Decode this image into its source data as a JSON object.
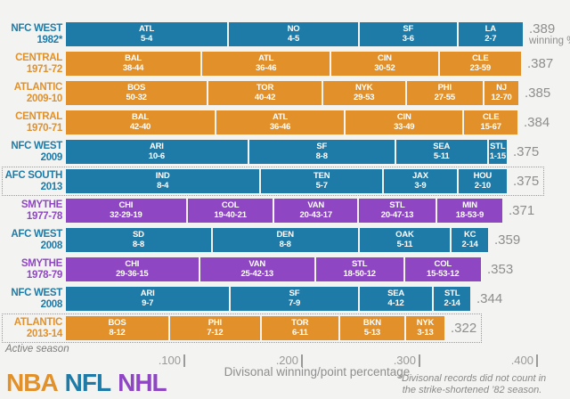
{
  "page": {
    "background": "#f3f3f1"
  },
  "legend": {
    "items": [
      {
        "label": "NBA",
        "color": "#e2912a"
      },
      {
        "label": "NFL",
        "color": "#1e7ba8"
      },
      {
        "label": "NHL",
        "color": "#8f46c3"
      }
    ]
  },
  "active_season_label": "Active season",
  "footnote": {
    "line1": "*Divisonal records did not count in",
    "line2": "the strike-shortened ’82 season."
  },
  "axis": {
    "title": "Divisonal winning/point percentage",
    "ticks": [
      {
        "label": ".100",
        "value": 0.1
      },
      {
        "label": ".200",
        "value": 0.2
      },
      {
        "label": ".300",
        "value": 0.3
      },
      {
        "label": ".400",
        "value": 0.4
      }
    ]
  },
  "chart_data": {
    "type": "bar",
    "orientation": "horizontal",
    "xlabel": "Divisonal winning/point percentage",
    "xlim": [
      0,
      0.4
    ],
    "note": "segment widths proportional to wins (NBA/NFL) or points 2W+T (NHL)",
    "rows": [
      {
        "division": "NFC WEST",
        "season": "1982*",
        "league": "NFL",
        "value": 0.389,
        "value_label": ".389",
        "value_sub": "winning %",
        "active": false,
        "teams": [
          {
            "team": "ATL",
            "record": "5-4"
          },
          {
            "team": "NO",
            "record": "4-5"
          },
          {
            "team": "SF",
            "record": "3-6"
          },
          {
            "team": "LA",
            "record": "2-7"
          }
        ]
      },
      {
        "division": "CENTRAL",
        "season": "1971-72",
        "league": "NBA",
        "value": 0.387,
        "value_label": ".387",
        "active": false,
        "teams": [
          {
            "team": "BAL",
            "record": "38-44"
          },
          {
            "team": "ATL",
            "record": "36-46"
          },
          {
            "team": "CIN",
            "record": "30-52"
          },
          {
            "team": "CLE",
            "record": "23-59"
          }
        ]
      },
      {
        "division": "ATLANTIC",
        "season": "2009-10",
        "league": "NBA",
        "value": 0.385,
        "value_label": ".385",
        "active": false,
        "teams": [
          {
            "team": "BOS",
            "record": "50-32"
          },
          {
            "team": "TOR",
            "record": "40-42"
          },
          {
            "team": "NYK",
            "record": "29-53"
          },
          {
            "team": "PHI",
            "record": "27-55"
          },
          {
            "team": "NJ",
            "record": "12-70"
          }
        ]
      },
      {
        "division": "CENTRAL",
        "season": "1970-71",
        "league": "NBA",
        "value": 0.384,
        "value_label": ".384",
        "active": false,
        "teams": [
          {
            "team": "BAL",
            "record": "42-40"
          },
          {
            "team": "ATL",
            "record": "36-46"
          },
          {
            "team": "CIN",
            "record": "33-49"
          },
          {
            "team": "CLE",
            "record": "15-67"
          }
        ]
      },
      {
        "division": "NFC WEST",
        "season": "2009",
        "league": "NFL",
        "value": 0.375,
        "value_label": ".375",
        "active": false,
        "teams": [
          {
            "team": "ARI",
            "record": "10-6"
          },
          {
            "team": "SF",
            "record": "8-8"
          },
          {
            "team": "SEA",
            "record": "5-11"
          },
          {
            "team": "STL",
            "record": "1-15"
          }
        ]
      },
      {
        "division": "AFC SOUTH",
        "season": "2013",
        "league": "NFL",
        "value": 0.375,
        "value_label": ".375",
        "active": true,
        "teams": [
          {
            "team": "IND",
            "record": "8-4"
          },
          {
            "team": "TEN",
            "record": "5-7"
          },
          {
            "team": "JAX",
            "record": "3-9"
          },
          {
            "team": "HOU",
            "record": "2-10"
          }
        ]
      },
      {
        "division": "SMYTHE",
        "season": "1977-78",
        "league": "NHL",
        "value": 0.371,
        "value_label": ".371",
        "active": false,
        "teams": [
          {
            "team": "CHI",
            "record": "32-29-19"
          },
          {
            "team": "COL",
            "record": "19-40-21"
          },
          {
            "team": "VAN",
            "record": "20-43-17"
          },
          {
            "team": "STL",
            "record": "20-47-13"
          },
          {
            "team": "MIN",
            "record": "18-53-9"
          }
        ]
      },
      {
        "division": "AFC WEST",
        "season": "2008",
        "league": "NFL",
        "value": 0.359,
        "value_label": ".359",
        "active": false,
        "teams": [
          {
            "team": "SD",
            "record": "8-8"
          },
          {
            "team": "DEN",
            "record": "8-8"
          },
          {
            "team": "OAK",
            "record": "5-11"
          },
          {
            "team": "KC",
            "record": "2-14"
          }
        ]
      },
      {
        "division": "SMYTHE",
        "season": "1978-79",
        "league": "NHL",
        "value": 0.353,
        "value_label": ".353",
        "active": false,
        "teams": [
          {
            "team": "CHI",
            "record": "29-36-15"
          },
          {
            "team": "VAN",
            "record": "25-42-13"
          },
          {
            "team": "STL",
            "record": "18-50-12"
          },
          {
            "team": "COL",
            "record": "15-53-12"
          }
        ]
      },
      {
        "division": "NFC WEST",
        "season": "2008",
        "league": "NFL",
        "value": 0.344,
        "value_label": ".344",
        "active": false,
        "teams": [
          {
            "team": "ARI",
            "record": "9-7"
          },
          {
            "team": "SF",
            "record": "7-9"
          },
          {
            "team": "SEA",
            "record": "4-12"
          },
          {
            "team": "STL",
            "record": "2-14"
          }
        ]
      },
      {
        "division": "ATLANTIC",
        "season": "2013-14",
        "league": "NBA",
        "value": 0.322,
        "value_label": ".322",
        "active": true,
        "teams": [
          {
            "team": "BOS",
            "record": "8-12"
          },
          {
            "team": "PHI",
            "record": "7-12"
          },
          {
            "team": "TOR",
            "record": "6-11"
          },
          {
            "team": "BKN",
            "record": "5-13"
          },
          {
            "team": "NYK",
            "record": "3-13"
          }
        ]
      }
    ]
  }
}
